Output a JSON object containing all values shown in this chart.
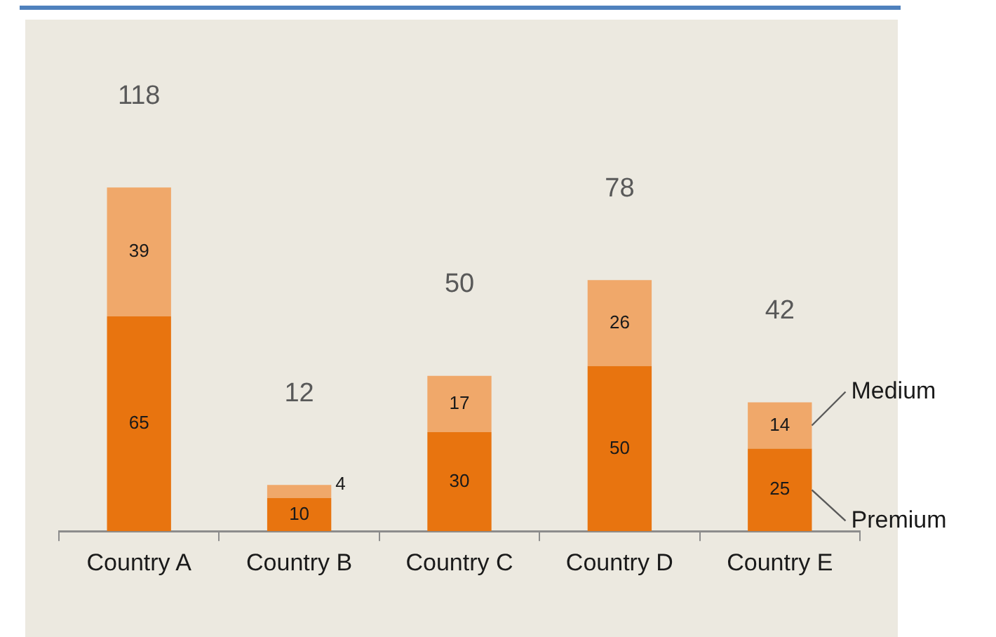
{
  "chart_data": {
    "type": "bar",
    "stacked": true,
    "data_labels": true,
    "categories": [
      "Country A",
      "Country B",
      "Country C",
      "Country D",
      "Country E"
    ],
    "series": [
      {
        "name": "Premium",
        "color": "#e8740f",
        "values": [
          65,
          10,
          30,
          50,
          25
        ]
      },
      {
        "name": "Medium",
        "color": "#f0a86a",
        "values": [
          39,
          4,
          17,
          26,
          14
        ]
      }
    ],
    "annotations": [
      "118",
      "12",
      "50",
      "78",
      "42"
    ]
  }
}
